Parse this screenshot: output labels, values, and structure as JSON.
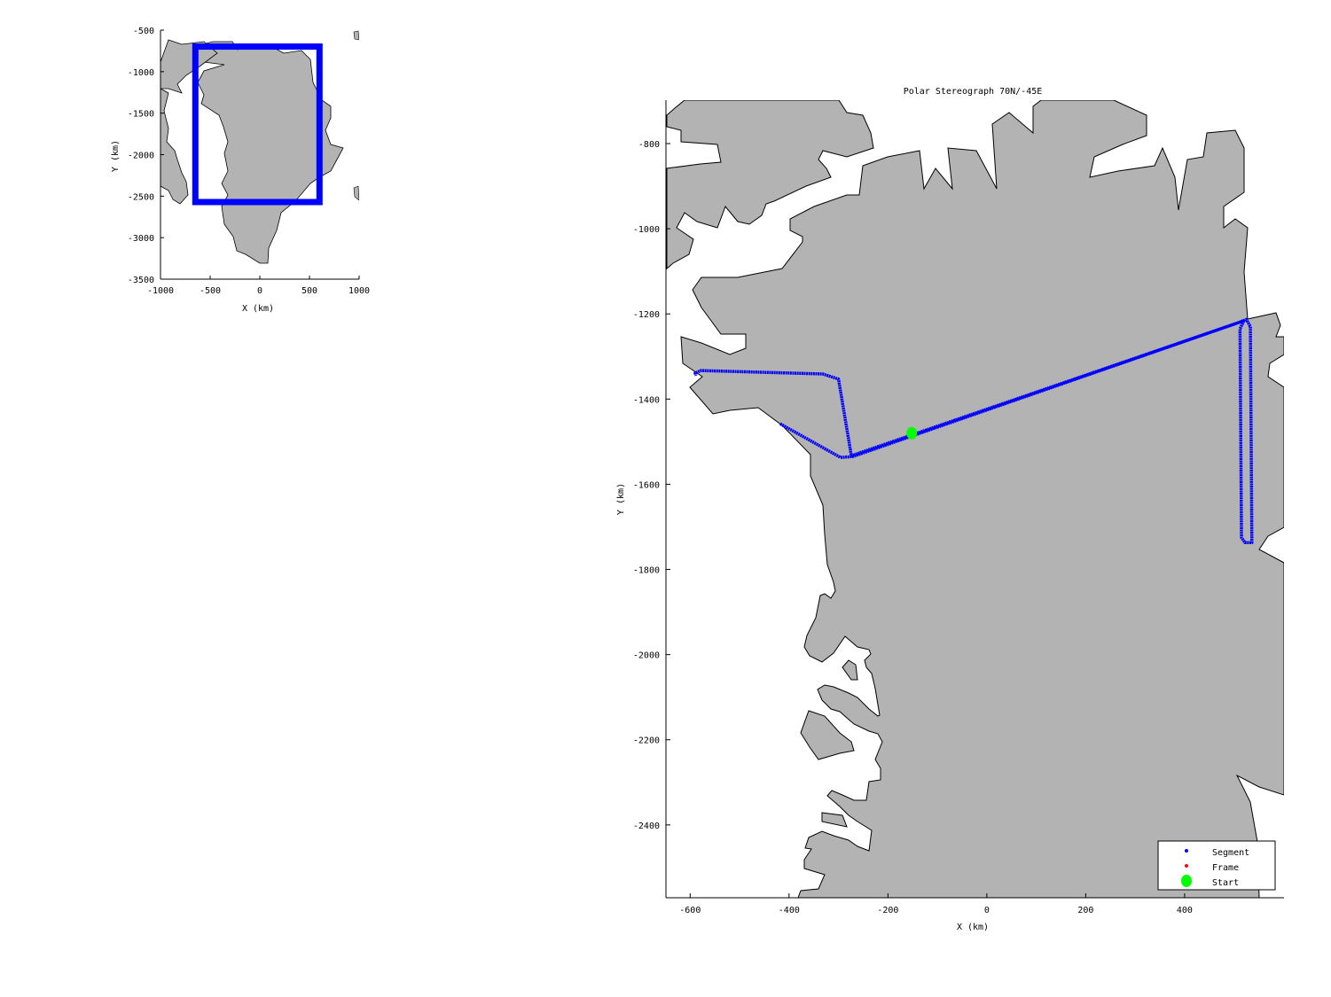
{
  "colors": {
    "land": "#b3b3b3",
    "ocean": "#ffffff",
    "segment": "#0000ff",
    "frame": "#ff0000",
    "start": "#00ff00",
    "coast": "#000000"
  },
  "inset": {
    "xlabel": "X (km)",
    "ylabel": "Y (km)",
    "xlim": [
      -1000,
      1000
    ],
    "ylim": [
      -3500,
      -500
    ],
    "xticks": [
      "-1000",
      "-500",
      "0",
      "500",
      "1000"
    ],
    "yticks": [
      "-500",
      "-1000",
      "-1500",
      "-2000",
      "-2500",
      "-3000",
      "-3500"
    ],
    "extent_box": {
      "x": [
        -649,
        601
      ],
      "y": [
        -2571,
        -698
      ]
    }
  },
  "chart_data": {
    "type": "map",
    "title": "Polar Stereograph 70N/-45E",
    "xlabel": "X (km)",
    "ylabel": "Y (km)",
    "xlim": [
      -649,
      601
    ],
    "ylim": [
      -2571,
      -698
    ],
    "xticks": [
      -600,
      -400,
      -200,
      0,
      200,
      400
    ],
    "yticks": [
      -800,
      -1000,
      -1200,
      -1400,
      -1600,
      -1800,
      -2000,
      -2200,
      -2400
    ],
    "legend": {
      "placement": "bottom-right",
      "entries": [
        "Segment",
        "Frame",
        "Start"
      ]
    },
    "segment": {
      "x": [
        -418,
        -296,
        -271,
        520,
        512,
        515,
        522,
        536,
        533,
        525,
        510,
        -274,
        -300,
        -332,
        -578,
        -590,
        -588
      ],
      "y": [
        -1458,
        -1537,
        -1535,
        -1216,
        -1235,
        -1725,
        -1737,
        -1737,
        -1230,
        -1213,
        -1220,
        -1533,
        -1353,
        -1341,
        -1333,
        -1339,
        -1345
      ]
    },
    "start": {
      "x": -152,
      "y": -1480
    }
  }
}
